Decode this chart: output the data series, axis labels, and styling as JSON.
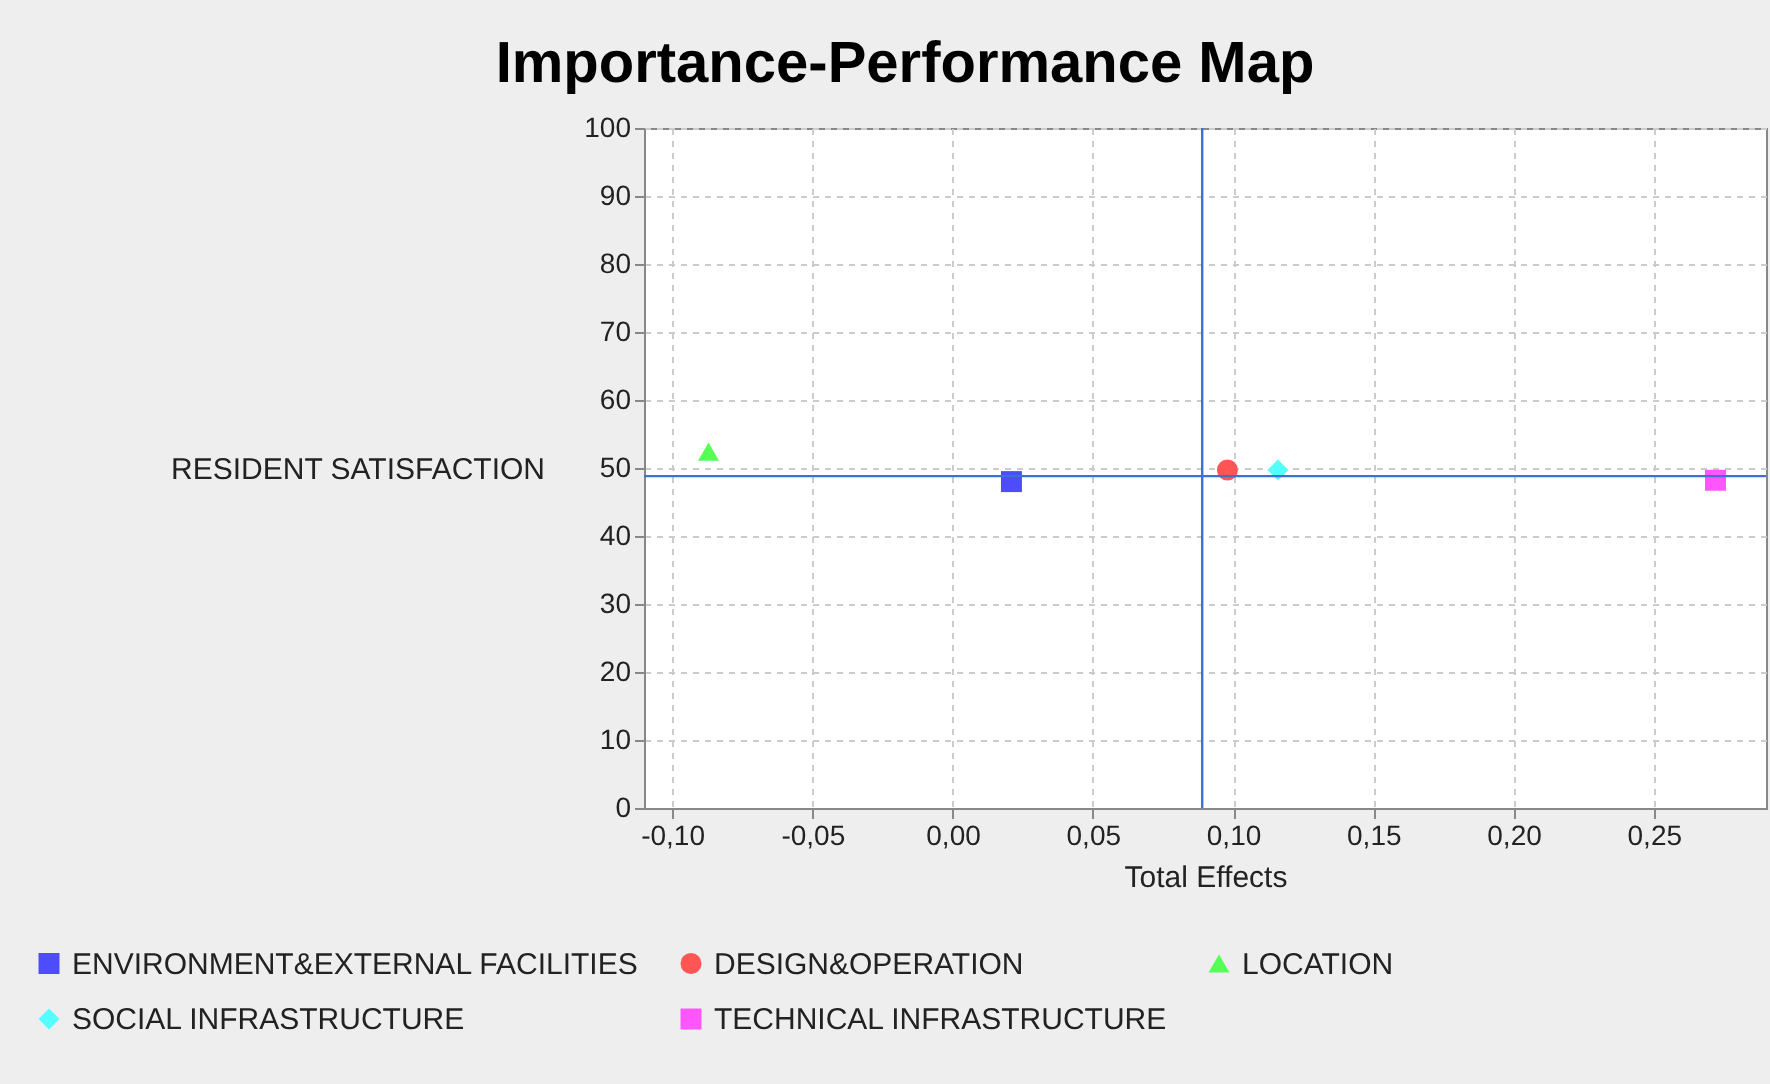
{
  "chart_data": {
    "type": "scatter",
    "title": "Importance-Performance Map",
    "xlabel": "Total Effects",
    "ylabel": "RESIDENT SATISFACTION",
    "xlim": [
      -0.11,
      0.29
    ],
    "ylim": [
      0,
      100
    ],
    "xticks": [
      {
        "value": -0.1,
        "label": "-0,10"
      },
      {
        "value": -0.05,
        "label": "-0,05"
      },
      {
        "value": 0,
        "label": "0,00"
      },
      {
        "value": 0.05,
        "label": "0,05"
      },
      {
        "value": 0.1,
        "label": "0,10"
      },
      {
        "value": 0.15,
        "label": "0,15"
      },
      {
        "value": 0.2,
        "label": "0,20"
      },
      {
        "value": 0.25,
        "label": "0,25"
      }
    ],
    "yticks": [
      0,
      10,
      20,
      30,
      40,
      50,
      60,
      70,
      80,
      90,
      100
    ],
    "grid": true,
    "legend": "bottom",
    "series": [
      {
        "name": "ENVIRONMENT&EXTERNAL FACILITIES",
        "color": "#4d4dff",
        "marker": "square",
        "x": [
          0.021
        ],
        "values": [
          48.0
        ]
      },
      {
        "name": "DESIGN&OPERATION",
        "color": "#ff5555",
        "marker": "circle",
        "x": [
          0.098
        ],
        "values": [
          49.7
        ]
      },
      {
        "name": "LOCATION",
        "color": "#55ff55",
        "marker": "triangle",
        "x": [
          -0.087
        ],
        "values": [
          52.4
        ]
      },
      {
        "name": "SOCIAL INFRASTRUCTURE",
        "color": "#55ffff",
        "marker": "diamond",
        "x": [
          0.116
        ],
        "values": [
          49.7
        ]
      },
      {
        "name": "TECHNICAL INFRASTRUCTURE",
        "color": "#ff55ff",
        "marker": "square",
        "x": [
          0.272
        ],
        "values": [
          48.2
        ]
      }
    ],
    "ref_lines": [
      {
        "axis": "x",
        "value": 0.089,
        "color": "#3f6fd0"
      },
      {
        "axis": "y",
        "value": 48.8,
        "color": "#3f6fd0"
      }
    ]
  }
}
